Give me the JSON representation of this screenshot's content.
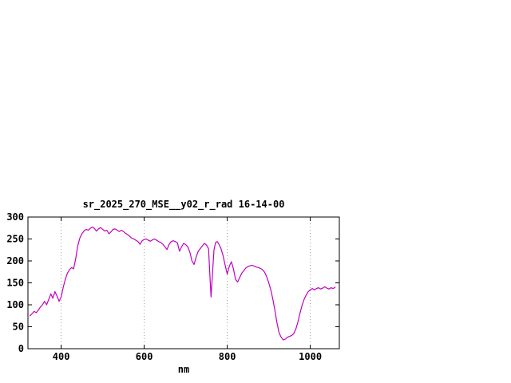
{
  "window": {
    "background": "#ffffff"
  },
  "chart_data": {
    "type": "line",
    "title": "sr_2025_270_MSE__y02_r_rad 16-14-00",
    "xlabel": "nm",
    "ylabel": "",
    "xlim": [
      320,
      1070
    ],
    "ylim": [
      0,
      300
    ],
    "xticks": [
      400,
      600,
      800,
      1000
    ],
    "yticks": [
      0,
      50,
      100,
      150,
      200,
      250,
      300
    ],
    "grid": {
      "x": true,
      "y": false,
      "style": "dotted"
    },
    "legend": "none",
    "line_color": "#c000c0",
    "series": [
      {
        "x": [
          325,
          330,
          335,
          340,
          345,
          350,
          355,
          360,
          365,
          370,
          375,
          380,
          385,
          390,
          395,
          400,
          405,
          410,
          415,
          420,
          425,
          430,
          435,
          440,
          445,
          450,
          455,
          460,
          465,
          470,
          475,
          480,
          485,
          490,
          495,
          500,
          505,
          510,
          515,
          520,
          525,
          530,
          535,
          540,
          545,
          550,
          555,
          560,
          565,
          570,
          575,
          580,
          585,
          590,
          595,
          600,
          605,
          610,
          615,
          620,
          625,
          630,
          635,
          640,
          645,
          650,
          655,
          660,
          665,
          670,
          675,
          680,
          685,
          690,
          695,
          700,
          705,
          710,
          715,
          720,
          725,
          730,
          735,
          740,
          745,
          750,
          755,
          758,
          761,
          764,
          768,
          772,
          776,
          780,
          785,
          790,
          795,
          800,
          805,
          810,
          815,
          820,
          825,
          830,
          835,
          840,
          845,
          850,
          855,
          860,
          865,
          870,
          875,
          880,
          885,
          890,
          895,
          900,
          905,
          910,
          915,
          920,
          925,
          930,
          935,
          940,
          945,
          950,
          955,
          960,
          965,
          970,
          975,
          980,
          985,
          990,
          995,
          1000,
          1005,
          1010,
          1015,
          1020,
          1025,
          1030,
          1035,
          1040,
          1045,
          1050,
          1055,
          1060
        ],
        "y": [
          75,
          80,
          85,
          82,
          88,
          95,
          100,
          108,
          100,
          112,
          125,
          115,
          130,
          120,
          108,
          118,
          140,
          158,
          172,
          180,
          185,
          182,
          205,
          235,
          252,
          262,
          268,
          272,
          270,
          274,
          277,
          274,
          268,
          273,
          276,
          272,
          268,
          270,
          262,
          266,
          272,
          273,
          270,
          267,
          270,
          267,
          263,
          260,
          256,
          252,
          250,
          247,
          244,
          238,
          246,
          249,
          250,
          247,
          245,
          248,
          250,
          247,
          244,
          242,
          238,
          232,
          226,
          238,
          244,
          246,
          244,
          241,
          222,
          232,
          240,
          237,
          232,
          220,
          200,
          192,
          208,
          222,
          228,
          234,
          240,
          236,
          228,
          170,
          118,
          165,
          225,
          242,
          244,
          238,
          228,
          212,
          190,
          170,
          188,
          198,
          182,
          158,
          152,
          162,
          172,
          178,
          184,
          187,
          189,
          190,
          188,
          186,
          185,
          183,
          180,
          174,
          164,
          150,
          134,
          112,
          86,
          58,
          36,
          26,
          20,
          22,
          26,
          28,
          30,
          34,
          44,
          60,
          80,
          98,
          112,
          122,
          130,
          134,
          137,
          134,
          137,
          139,
          136,
          138,
          141,
          138,
          136,
          139,
          137,
          140
        ]
      }
    ]
  }
}
